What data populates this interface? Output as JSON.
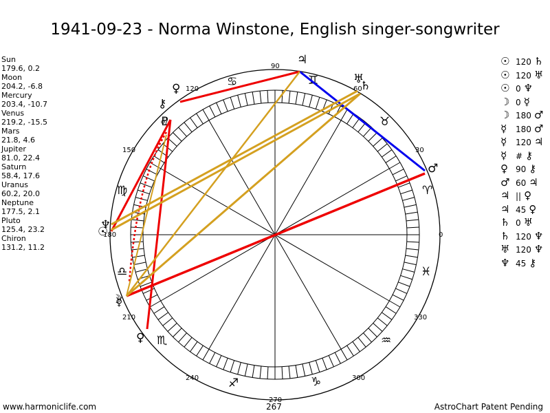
{
  "title": "1941-09-23 - Norma Winstone, English singer-songwriter",
  "positions": [
    {
      "name": "Sun",
      "value": "179.6, 0.2"
    },
    {
      "name": "Moon",
      "value": "204.2, -6.8"
    },
    {
      "name": "Mercury",
      "value": "203.4, -10.7"
    },
    {
      "name": "Venus",
      "value": "219.2, -15.5"
    },
    {
      "name": "Mars",
      "value": "21.8, 4.6"
    },
    {
      "name": "Jupiter",
      "value": "81.0, 22.4"
    },
    {
      "name": "Saturn",
      "value": "58.4, 17.6"
    },
    {
      "name": "Uranus",
      "value": "60.2, 20.0"
    },
    {
      "name": "Neptune",
      "value": "177.5, 2.1"
    },
    {
      "name": "Pluto",
      "value": "125.4, 23.2"
    },
    {
      "name": "Chiron",
      "value": "131.2, 11.2"
    }
  ],
  "wheel": {
    "degree_labels": [
      "0",
      "30",
      "60",
      "90",
      "120",
      "150",
      "180",
      "210",
      "240",
      "267",
      "270",
      "300",
      "330"
    ],
    "zodiac_glyphs": [
      "♈",
      "♉",
      "♊",
      "♋",
      "♌",
      "♍",
      "♎",
      "♏",
      "♐",
      "♑",
      "♒",
      "♓"
    ],
    "planet_glyphs": [
      {
        "glyph": "♃",
        "name": "Jupiter"
      },
      {
        "glyph": "♅",
        "name": "Uranus"
      },
      {
        "glyph": "♄",
        "name": "Saturn"
      },
      {
        "glyph": "♂",
        "name": "Mars"
      },
      {
        "glyph": "♀",
        "name": "Venus-retro"
      },
      {
        "glyph": "⚷",
        "name": "Chiron"
      },
      {
        "glyph": "♇",
        "name": "Pluto"
      },
      {
        "glyph": "☉",
        "name": "Sun"
      },
      {
        "glyph": "♆",
        "name": "Neptune"
      },
      {
        "glyph": "☽",
        "name": "Moon"
      },
      {
        "glyph": "☿",
        "name": "Mercury"
      },
      {
        "glyph": "♀",
        "name": "Venus"
      }
    ]
  },
  "aspects_list": [
    {
      "p1": "☉",
      "num": "120",
      "p2": "♄"
    },
    {
      "p1": "☉",
      "num": "120",
      "p2": "♅"
    },
    {
      "p1": "☉",
      "num": "0",
      "p2": "♆"
    },
    {
      "p1": "☽",
      "num": "0",
      "p2": "☿"
    },
    {
      "p1": "☽",
      "num": "180",
      "p2": "♂"
    },
    {
      "p1": "☿",
      "num": "180",
      "p2": "♂"
    },
    {
      "p1": "☿",
      "num": "120",
      "p2": "♃"
    },
    {
      "p1": "☿",
      "num": "#",
      "p2": "⚷"
    },
    {
      "p1": "♀",
      "num": "90",
      "p2": "⚷"
    },
    {
      "p1": "♂",
      "num": "60",
      "p2": "♃"
    },
    {
      "p1": "♃",
      "num": "||",
      "p2": "♀"
    },
    {
      "p1": "♃",
      "num": "45",
      "p2": "♀"
    },
    {
      "p1": "♄",
      "num": "0",
      "p2": "♅"
    },
    {
      "p1": "♄",
      "num": "120",
      "p2": "♆"
    },
    {
      "p1": "♅",
      "num": "120",
      "p2": "♆"
    },
    {
      "p1": "♆",
      "num": "45",
      "p2": "⚷"
    }
  ],
  "footer_left": "www.harmoniclife.com",
  "footer_right": "AstroChart Patent Pending"
}
